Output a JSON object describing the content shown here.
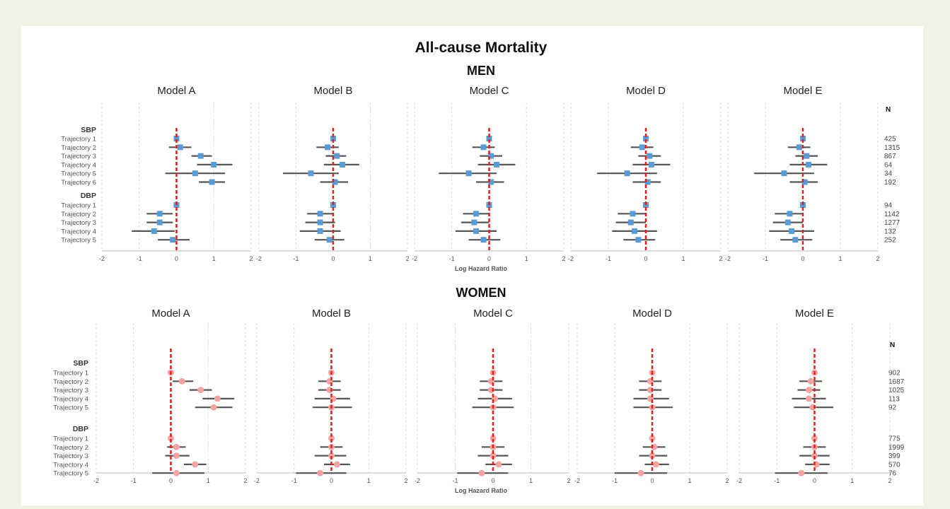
{
  "colors": {
    "men_marker": "#5b9bd5",
    "women_marker": "#f4a3a3",
    "ci_line": "#555555",
    "reference_line": "#e0201b",
    "grid": "#d0d0d0",
    "background": "#f1f1e6"
  },
  "figure": {
    "title": "All-cause Mortality",
    "xlabel": "Log Hazard Ratio",
    "n_header": "N"
  },
  "chart_data": [
    {
      "type": "forest",
      "panel": "MEN",
      "models": [
        "Model A",
        "Model B",
        "Model C",
        "Model D",
        "Model E"
      ],
      "xlim": [
        -2,
        2
      ],
      "xticks": [
        "-2",
        "-1",
        "0",
        "1",
        "2"
      ],
      "grid": true,
      "groups": [
        {
          "label": "SBP",
          "rows": [
            "Trajectory 1",
            "Trajectory 2",
            "Trajectory 3",
            "Trajectory 4",
            "Trajectory 5",
            "Trajectory 6"
          ],
          "n": [
            "425",
            "1315",
            "867",
            "64",
            "34",
            "192"
          ],
          "estimates": [
            [
              [
                0,
                0,
                0
              ],
              [
                0.1,
                -0.2,
                0.4
              ],
              [
                0.65,
                0.4,
                0.95
              ],
              [
                1.0,
                0.55,
                1.5
              ],
              [
                0.5,
                -0.3,
                1.3
              ],
              [
                0.95,
                0.6,
                1.3
              ]
            ],
            [
              [
                0,
                0,
                0
              ],
              [
                -0.15,
                -0.45,
                0.15
              ],
              [
                0.1,
                -0.2,
                0.35
              ],
              [
                0.25,
                -0.25,
                0.7
              ],
              [
                -0.6,
                -1.35,
                0.15
              ],
              [
                0.05,
                -0.35,
                0.4
              ]
            ],
            [
              [
                0,
                0,
                0
              ],
              [
                -0.15,
                -0.45,
                0.15
              ],
              [
                0.05,
                -0.25,
                0.35
              ],
              [
                0.2,
                -0.3,
                0.7
              ],
              [
                -0.55,
                -1.35,
                0.2
              ],
              [
                0.05,
                -0.35,
                0.4
              ]
            ],
            [
              [
                0,
                0,
                0
              ],
              [
                -0.1,
                -0.4,
                0.2
              ],
              [
                0.1,
                -0.2,
                0.4
              ],
              [
                0.15,
                -0.35,
                0.65
              ],
              [
                -0.5,
                -1.3,
                0.3
              ],
              [
                0.05,
                -0.35,
                0.4
              ]
            ],
            [
              [
                0,
                0,
                0
              ],
              [
                -0.1,
                -0.4,
                0.2
              ],
              [
                0.1,
                -0.2,
                0.4
              ],
              [
                0.15,
                -0.35,
                0.65
              ],
              [
                -0.5,
                -1.3,
                0.3
              ],
              [
                0.05,
                -0.35,
                0.4
              ]
            ]
          ]
        },
        {
          "label": "DBP",
          "rows": [
            "Trajectory 1",
            "Trajectory 2",
            "Trajectory 3",
            "Trajectory 4",
            "Trajectory 5"
          ],
          "n": [
            "94",
            "1142",
            "1277",
            "132",
            "252"
          ],
          "estimates": [
            [
              [
                0,
                0,
                0
              ],
              [
                -0.45,
                -0.8,
                -0.1
              ],
              [
                -0.45,
                -0.8,
                -0.1
              ],
              [
                -0.6,
                -1.2,
                -0.05
              ],
              [
                -0.1,
                -0.5,
                0.35
              ]
            ],
            [
              [
                0,
                0,
                0
              ],
              [
                -0.35,
                -0.7,
                0.0
              ],
              [
                -0.35,
                -0.75,
                0.05
              ],
              [
                -0.35,
                -0.9,
                0.2
              ],
              [
                -0.1,
                -0.5,
                0.3
              ]
            ],
            [
              [
                0,
                0,
                0
              ],
              [
                -0.35,
                -0.7,
                0.0
              ],
              [
                -0.4,
                -0.75,
                0.0
              ],
              [
                -0.35,
                -0.9,
                0.2
              ],
              [
                -0.15,
                -0.55,
                0.3
              ]
            ],
            [
              [
                0,
                0,
                0
              ],
              [
                -0.35,
                -0.75,
                0.0
              ],
              [
                -0.4,
                -0.8,
                0.0
              ],
              [
                -0.3,
                -0.9,
                0.3
              ],
              [
                -0.2,
                -0.6,
                0.25
              ]
            ],
            [
              [
                0,
                0,
                0
              ],
              [
                -0.35,
                -0.75,
                0.0
              ],
              [
                -0.4,
                -0.8,
                0.0
              ],
              [
                -0.3,
                -0.9,
                0.3
              ],
              [
                -0.2,
                -0.6,
                0.25
              ]
            ]
          ]
        }
      ]
    },
    {
      "type": "forest",
      "panel": "WOMEN",
      "models": [
        "Model A",
        "Model B",
        "Model C",
        "Model D",
        "Model E"
      ],
      "xlim": [
        -2,
        2
      ],
      "xticks": [
        "-2",
        "-1",
        "0",
        "1",
        "2"
      ],
      "grid": true,
      "groups": [
        {
          "label": "SBP",
          "rows": [
            "Trajectory 1",
            "Trajectory 2",
            "Trajectory 3",
            "Trajectory 4",
            "Trajectory 5"
          ],
          "n": [
            "902",
            "1687",
            "1025",
            "113",
            "92"
          ],
          "estimates": [
            [
              [
                0,
                0,
                0
              ],
              [
                0.3,
                0.05,
                0.6
              ],
              [
                0.8,
                0.5,
                1.1
              ],
              [
                1.25,
                0.85,
                1.7
              ],
              [
                1.15,
                0.65,
                1.65
              ]
            ],
            [
              [
                0,
                0,
                0
              ],
              [
                -0.05,
                -0.35,
                0.25
              ],
              [
                -0.05,
                -0.35,
                0.25
              ],
              [
                0.05,
                -0.45,
                0.5
              ],
              [
                0.0,
                -0.5,
                0.55
              ]
            ],
            [
              [
                0,
                0,
                0
              ],
              [
                -0.05,
                -0.35,
                0.25
              ],
              [
                -0.05,
                -0.35,
                0.25
              ],
              [
                0.05,
                -0.4,
                0.5
              ],
              [
                0.0,
                -0.55,
                0.55
              ]
            ],
            [
              [
                0,
                0,
                0
              ],
              [
                -0.05,
                -0.35,
                0.25
              ],
              [
                -0.05,
                -0.35,
                0.25
              ],
              [
                -0.05,
                -0.5,
                0.45
              ],
              [
                0.0,
                -0.5,
                0.55
              ]
            ],
            [
              [
                0,
                0,
                0
              ],
              [
                -0.1,
                -0.4,
                0.2
              ],
              [
                -0.15,
                -0.45,
                0.15
              ],
              [
                -0.15,
                -0.6,
                0.3
              ],
              [
                -0.05,
                -0.55,
                0.5
              ]
            ]
          ]
        },
        {
          "label": "DBP",
          "rows": [
            "Trajectory 1",
            "Trajectory 2",
            "Trajectory 3",
            "Trajectory 4",
            "Trajectory 5"
          ],
          "n": [
            "775",
            "1999",
            "399",
            "570",
            "76"
          ],
          "estimates": [
            [
              [
                0,
                0,
                0
              ],
              [
                0.15,
                -0.1,
                0.4
              ],
              [
                0.15,
                -0.15,
                0.5
              ],
              [
                0.65,
                0.35,
                0.95
              ],
              [
                0.15,
                -0.5,
                0.9
              ]
            ],
            [
              [
                0,
                0,
                0
              ],
              [
                0.0,
                -0.3,
                0.3
              ],
              [
                0.0,
                -0.45,
                0.4
              ],
              [
                0.15,
                -0.2,
                0.5
              ],
              [
                -0.3,
                -0.95,
                0.4
              ]
            ],
            [
              [
                0,
                0,
                0
              ],
              [
                0.0,
                -0.3,
                0.3
              ],
              [
                0.0,
                -0.4,
                0.4
              ],
              [
                0.15,
                -0.2,
                0.5
              ],
              [
                -0.3,
                -0.95,
                0.4
              ]
            ],
            [
              [
                0,
                0,
                0
              ],
              [
                0.05,
                -0.25,
                0.35
              ],
              [
                0.0,
                -0.35,
                0.4
              ],
              [
                0.1,
                -0.2,
                0.45
              ],
              [
                -0.3,
                -1.0,
                0.4
              ]
            ],
            [
              [
                0,
                0,
                0
              ],
              [
                0.0,
                -0.3,
                0.3
              ],
              [
                0.0,
                -0.4,
                0.4
              ],
              [
                0.05,
                -0.25,
                0.4
              ],
              [
                -0.35,
                -1.05,
                0.35
              ]
            ]
          ]
        }
      ]
    }
  ]
}
